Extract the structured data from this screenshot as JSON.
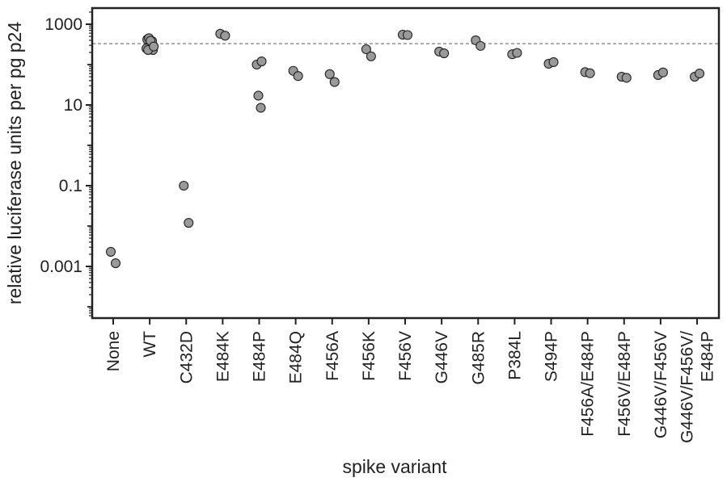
{
  "chart_data": {
    "type": "scatter",
    "xlabel": "spike variant",
    "ylabel": "relative luciferase units per pg p24",
    "y_scale": "log",
    "ylim": [
      5e-05,
      2000
    ],
    "y_ticks": [
      {
        "value": 1000,
        "label": "1000"
      },
      {
        "value": 10,
        "label": "10"
      },
      {
        "value": 0.1,
        "label": "0.1"
      },
      {
        "value": 0.001,
        "label": "0.001"
      }
    ],
    "reference_line": {
      "y": 330,
      "style": "dashed",
      "color": "#888888"
    },
    "grid": false,
    "marker_color": "#999999",
    "marker_edge_color": "#222222",
    "categories": [
      {
        "label": [
          "None"
        ],
        "values": [
          0.0023,
          0.0012
        ]
      },
      {
        "label": [
          "WT"
        ],
        "values": [
          420,
          380,
          450,
          300,
          250,
          230,
          390,
          230,
          280
        ]
      },
      {
        "label": [
          "C432D"
        ],
        "values": [
          0.1,
          0.012
        ]
      },
      {
        "label": [
          "E484K"
        ],
        "values": [
          580,
          520
        ]
      },
      {
        "label": [
          "E484P"
        ],
        "values": [
          100,
          120,
          17,
          8.5
        ]
      },
      {
        "label": [
          "E484Q"
        ],
        "values": [
          70,
          52
        ]
      },
      {
        "label": [
          "F456A"
        ],
        "values": [
          58,
          37
        ]
      },
      {
        "label": [
          "F456K"
        ],
        "values": [
          240,
          160
        ]
      },
      {
        "label": [
          "F456V"
        ],
        "values": [
          550,
          540
        ]
      },
      {
        "label": [
          "G446V"
        ],
        "values": [
          210,
          190
        ]
      },
      {
        "label": [
          "G485R"
        ],
        "values": [
          400,
          290
        ]
      },
      {
        "label": [
          "P384L"
        ],
        "values": [
          180,
          195
        ]
      },
      {
        "label": [
          "S494P"
        ],
        "values": [
          105,
          115
        ]
      },
      {
        "label": [
          "F456A/E484P"
        ],
        "values": [
          65,
          61
        ]
      },
      {
        "label": [
          "F456V/E484P"
        ],
        "values": [
          50,
          47
        ]
      },
      {
        "label": [
          "G446V/F456V"
        ],
        "values": [
          55,
          64
        ]
      },
      {
        "label": [
          "G446V/F456V/",
          "E484P"
        ],
        "values": [
          50,
          60
        ]
      }
    ]
  }
}
